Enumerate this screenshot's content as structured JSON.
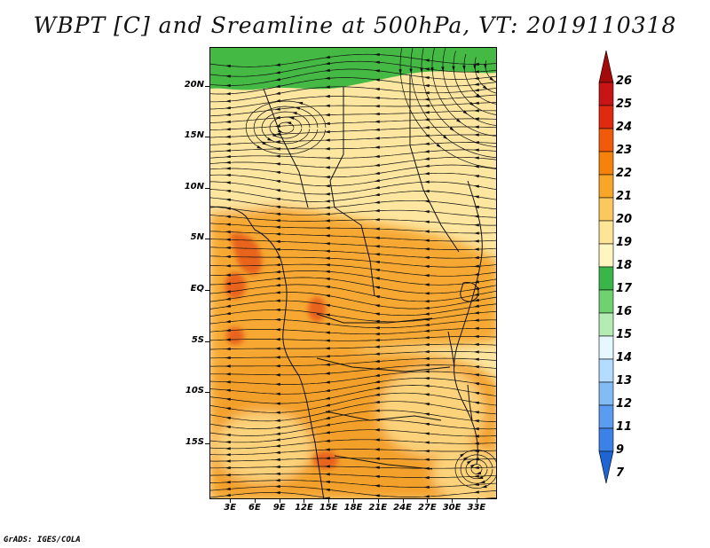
{
  "title": "WBPT [C] and Sreamline at 500hPa, VT: 2019110318",
  "credit": "GrADS: IGES/COLA",
  "lat_labels": [
    {
      "text": "20N",
      "lat": 20
    },
    {
      "text": "15N",
      "lat": 15
    },
    {
      "text": "10N",
      "lat": 10
    },
    {
      "text": "5N",
      "lat": 5
    },
    {
      "text": "EQ",
      "lat": 0
    },
    {
      "text": "5S",
      "lat": -5
    },
    {
      "text": "10S",
      "lat": -10
    },
    {
      "text": "15S",
      "lat": -15
    }
  ],
  "lon_labels": [
    {
      "text": "3E",
      "lon": 3
    },
    {
      "text": "6E",
      "lon": 6
    },
    {
      "text": "9E",
      "lon": 9
    },
    {
      "text": "12E",
      "lon": 12
    },
    {
      "text": "15E",
      "lon": 15
    },
    {
      "text": "18E",
      "lon": 18
    },
    {
      "text": "21E",
      "lon": 21
    },
    {
      "text": "24E",
      "lon": 24
    },
    {
      "text": "27E",
      "lon": 27
    },
    {
      "text": "30E",
      "lon": 30
    },
    {
      "text": "33E",
      "lon": 33
    }
  ],
  "map_extent": {
    "lon_min": 0.5,
    "lon_max": 35.5,
    "lat_min": -20.5,
    "lat_max": 23.8
  },
  "colorbar": {
    "levels": [
      "26",
      "25",
      "24",
      "23",
      "22",
      "21",
      "20",
      "19",
      "18",
      "17",
      "16",
      "15",
      "14",
      "13",
      "12",
      "11",
      "9",
      "7"
    ],
    "colors": [
      "#a50a0a",
      "#c81414",
      "#e02a10",
      "#f05a0a",
      "#f5820a",
      "#f8a628",
      "#fbc860",
      "#fde496",
      "#fff5c0",
      "#39b54a",
      "#6fd16f",
      "#b4ecb4",
      "#e6f7ff",
      "#b4dcff",
      "#82bcf5",
      "#5a9cf0",
      "#3c82e6",
      "#1e64d2"
    ]
  },
  "zones": [
    {
      "name": "north-green",
      "color": "#44b944"
    },
    {
      "name": "sahel-pale",
      "color": "#fde6a0"
    },
    {
      "name": "central-orange",
      "color": "#f6a830"
    },
    {
      "name": "southern-orange",
      "color": "#f3a02a"
    },
    {
      "name": "hot-spots",
      "color": "#e8641c"
    }
  ]
}
